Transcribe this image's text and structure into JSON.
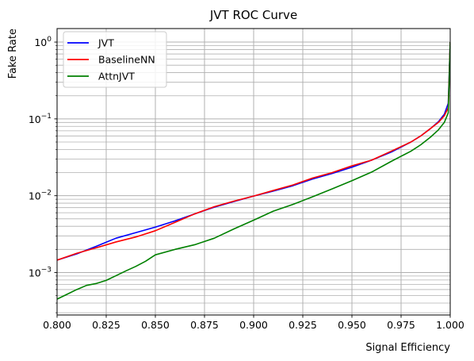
{
  "chart_data": {
    "type": "line",
    "title": "JVT ROC Curve",
    "xlabel": "Signal Efficiency",
    "ylabel": "Fake Rate",
    "xlim": [
      0.8,
      1.0
    ],
    "ylim": [
      0.00028,
      1.5
    ],
    "yscale": "log",
    "grid": "both (major and minor)",
    "legend_position": "top-left",
    "x_ticks": [
      "0.800",
      "0.825",
      "0.850",
      "0.875",
      "0.900",
      "0.925",
      "0.950",
      "0.975",
      "1.000"
    ],
    "x_tick_values": [
      0.8,
      0.825,
      0.85,
      0.875,
      0.9,
      0.925,
      0.95,
      0.975,
      1.0
    ],
    "y_ticks": [
      {
        "value": 0.001,
        "base": "10",
        "exp": "−3"
      },
      {
        "value": 0.01,
        "base": "10",
        "exp": "−2"
      },
      {
        "value": 0.1,
        "base": "10",
        "exp": "−1"
      },
      {
        "value": 1,
        "base": "10",
        "exp": "0"
      }
    ],
    "series": [
      {
        "name": "JVT",
        "color": "#0000ff",
        "x": [
          0.8,
          0.81,
          0.82,
          0.83,
          0.84,
          0.85,
          0.86,
          0.87,
          0.88,
          0.89,
          0.9,
          0.91,
          0.92,
          0.93,
          0.94,
          0.95,
          0.96,
          0.97,
          0.98,
          0.985,
          0.99,
          0.994,
          0.997,
          0.999,
          1.0
        ],
        "y": [
          0.00145,
          0.00175,
          0.0022,
          0.0028,
          0.0033,
          0.0039,
          0.0047,
          0.0058,
          0.0071,
          0.0084,
          0.0099,
          0.0115,
          0.0135,
          0.0165,
          0.0195,
          0.0235,
          0.029,
          0.037,
          0.05,
          0.06,
          0.075,
          0.092,
          0.115,
          0.16,
          1.0
        ]
      },
      {
        "name": "BaselineNN",
        "color": "#ff0000",
        "x": [
          0.8,
          0.81,
          0.82,
          0.83,
          0.84,
          0.85,
          0.86,
          0.87,
          0.88,
          0.89,
          0.9,
          0.91,
          0.92,
          0.93,
          0.94,
          0.95,
          0.96,
          0.97,
          0.98,
          0.985,
          0.99,
          0.994,
          0.997,
          0.999,
          1.0
        ],
        "y": [
          0.00145,
          0.00178,
          0.0021,
          0.0025,
          0.0029,
          0.0035,
          0.0045,
          0.0058,
          0.0072,
          0.0085,
          0.0099,
          0.0117,
          0.0138,
          0.017,
          0.02,
          0.0245,
          0.029,
          0.038,
          0.05,
          0.06,
          0.075,
          0.09,
          0.11,
          0.14,
          1.0
        ]
      },
      {
        "name": "AttnJVT",
        "color": "#008000",
        "x": [
          0.8,
          0.805,
          0.81,
          0.815,
          0.82,
          0.825,
          0.83,
          0.835,
          0.84,
          0.845,
          0.85,
          0.86,
          0.87,
          0.88,
          0.89,
          0.9,
          0.91,
          0.92,
          0.93,
          0.94,
          0.95,
          0.96,
          0.97,
          0.98,
          0.985,
          0.99,
          0.994,
          0.997,
          0.999,
          1.0
        ],
        "y": [
          0.00045,
          0.00052,
          0.0006,
          0.00068,
          0.00072,
          0.00079,
          0.00091,
          0.00105,
          0.0012,
          0.0014,
          0.0017,
          0.002,
          0.0023,
          0.0028,
          0.0037,
          0.0048,
          0.0063,
          0.0077,
          0.0097,
          0.0123,
          0.0157,
          0.0203,
          0.028,
          0.038,
          0.046,
          0.058,
          0.072,
          0.09,
          0.12,
          1.0
        ]
      }
    ]
  }
}
